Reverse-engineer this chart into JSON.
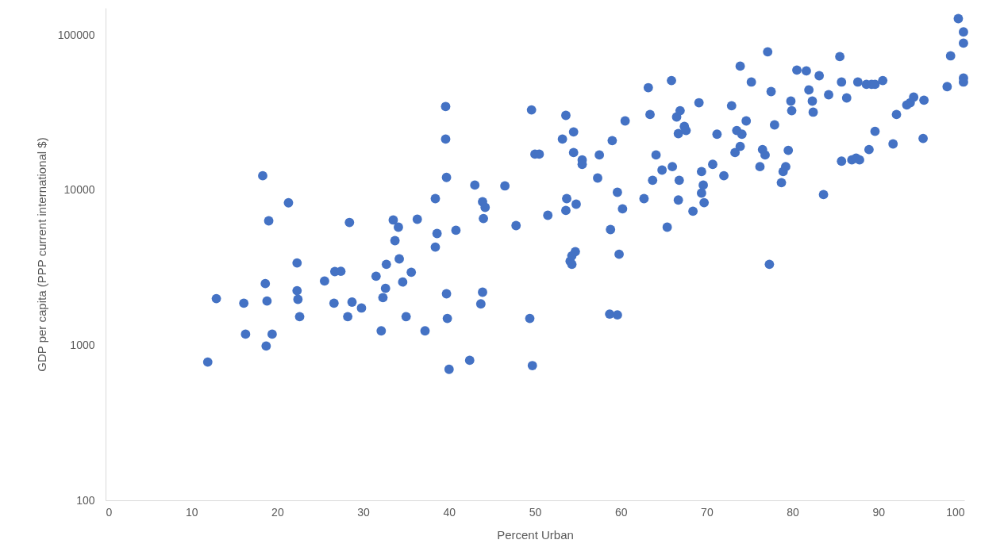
{
  "chart_data": {
    "type": "scatter",
    "xlabel": "Percent Urban",
    "ylabel": "GDP per capita (PPP current international $)",
    "xlim": [
      0,
      100
    ],
    "xticks": [
      0,
      10,
      20,
      30,
      40,
      50,
      60,
      70,
      80,
      90,
      100
    ],
    "ylim": [
      100,
      150000
    ],
    "yticks": [
      100,
      1000,
      10000,
      100000
    ],
    "log": "y",
    "grid": false,
    "marker": "circle",
    "x": [
      11.9,
      12.9,
      16.1,
      16.3,
      18.3,
      18.6,
      18.8,
      18.7,
      19.0,
      19.4,
      21.3,
      22.3,
      22.3,
      22.4,
      22.6,
      25.5,
      26.6,
      26.7,
      27.4,
      28.4,
      28.2,
      28.7,
      29.8,
      31.5,
      32.1,
      32.3,
      32.7,
      32.6,
      33.5,
      33.7,
      34.1,
      34.2,
      34.6,
      35.0,
      35.6,
      36.3,
      37.2,
      38.4,
      38.6,
      38.4,
      39.6,
      39.6,
      39.7,
      39.7,
      39.8,
      40.0,
      40.8,
      42.4,
      43.0,
      43.7,
      43.9,
      43.9,
      44.2,
      44.0,
      46.5,
      47.8,
      49.4,
      49.6,
      49.7,
      50.0,
      50.5,
      51.5,
      53.2,
      53.6,
      53.6,
      53.7,
      54.1,
      54.3,
      54.3,
      54.5,
      54.5,
      54.7,
      54.8,
      55.5,
      55.5,
      57.3,
      57.5,
      58.7,
      58.8,
      59.0,
      59.6,
      59.6,
      59.8,
      60.2,
      60.5,
      62.7,
      63.2,
      63.4,
      63.7,
      64.1,
      64.8,
      65.4,
      65.9,
      66.0,
      66.5,
      66.7,
      66.7,
      66.9,
      66.8,
      67.4,
      67.6,
      68.4,
      69.1,
      69.4,
      69.4,
      69.6,
      69.7,
      70.7,
      71.2,
      72.0,
      72.9,
      73.3,
      73.5,
      73.9,
      73.9,
      74.1,
      74.6,
      75.2,
      76.2,
      76.5,
      76.8,
      77.1,
      77.3,
      77.5,
      77.9,
      78.7,
      78.9,
      79.2,
      79.5,
      79.8,
      79.9,
      80.5,
      81.6,
      81.9,
      82.3,
      82.4,
      83.1,
      83.6,
      84.2,
      85.5,
      85.7,
      85.7,
      86.3,
      86.9,
      87.4,
      87.8,
      87.6,
      88.6,
      88.9,
      89.2,
      89.6,
      89.6,
      90.5,
      91.7,
      92.1,
      93.3,
      93.7,
      94.1,
      95.2,
      95.3,
      98.0,
      98.4,
      99.3,
      99.9,
      99.9,
      99.9,
      99.9
    ],
    "series": [
      {
        "color": "#4472c4",
        "values": [
          780,
          2000,
          1870,
          1180,
          12400,
          2500,
          1930,
          990,
          6350,
          1180,
          8300,
          3400,
          2250,
          1980,
          1530,
          2600,
          1870,
          2990,
          3000,
          6200,
          1530,
          1900,
          1740,
          2790,
          1240,
          2030,
          3330,
          2330,
          6430,
          4730,
          5780,
          3610,
          2560,
          1530,
          2960,
          6500,
          1240,
          8830,
          5260,
          4300,
          34700,
          21400,
          12100,
          2150,
          1490,
          700,
          5520,
          800,
          10800,
          1850,
          2200,
          8430,
          7760,
          6570,
          10670,
          5920,
          1490,
          33000,
          740,
          17100,
          17100,
          6900,
          21400,
          30400,
          7410,
          8830,
          3490,
          3780,
          3330,
          23800,
          17500,
          4020,
          8130,
          15700,
          14700,
          12000,
          16900,
          1590,
          5580,
          20900,
          1570,
          9700,
          3870,
          7590,
          28000,
          8830,
          45900,
          30800,
          11600,
          16900,
          13500,
          5780,
          51000,
          14200,
          29700,
          8650,
          23200,
          32600,
          11600,
          25800,
          24300,
          7330,
          36700,
          9590,
          13200,
          10800,
          8320,
          14700,
          23000,
          12400,
          35100,
          17500,
          24300,
          19200,
          63200,
          23000,
          28000,
          49900,
          14200,
          18300,
          16900,
          78200,
          3330,
          43300,
          26400,
          11200,
          13200,
          14200,
          18100,
          37600,
          32600,
          59600,
          58900,
          44400,
          37600,
          31900,
          54800,
          9380,
          41300,
          72800,
          49900,
          15400,
          39400,
          15700,
          16100,
          15700,
          49900,
          48200,
          18300,
          48200,
          48200,
          24000,
          51000,
          19900,
          30800,
          35500,
          36700,
          39900,
          21600,
          38100,
          46600,
          73600,
          128000,
          105000,
          89000,
          52900,
          49900
        ]
      }
    ]
  }
}
